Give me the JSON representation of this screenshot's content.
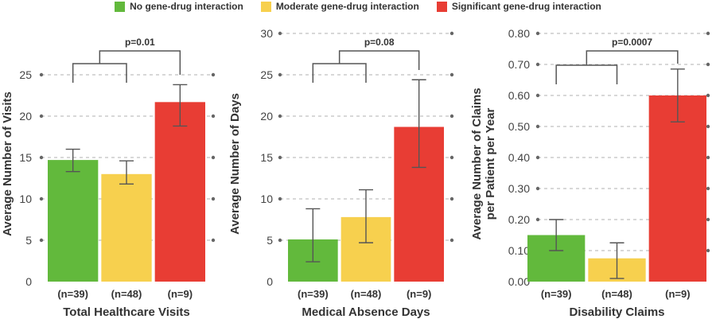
{
  "legend": [
    {
      "label": "No gene-drug interaction",
      "color": "#62b93c"
    },
    {
      "label": "Moderate gene-drug interaction",
      "color": "#f7d04e"
    },
    {
      "label": "Significant gene-drug interaction",
      "color": "#e83d34"
    }
  ],
  "chart_data": [
    {
      "type": "bar",
      "title": "Total Healthcare Visits",
      "ylabel": "Average Number of Visits",
      "categories": [
        "(n=39)",
        "(n=48)",
        "(n=9)"
      ],
      "values": [
        14.7,
        13.0,
        21.7
      ],
      "errors_low": [
        13.3,
        11.8,
        18.8
      ],
      "errors_high": [
        16.0,
        14.6,
        23.8
      ],
      "ylim": [
        0,
        25
      ],
      "yticks": [
        "0",
        "5",
        "10",
        "15",
        "20",
        "25"
      ],
      "pvalue": "p=0.01",
      "grid": true
    },
    {
      "type": "bar",
      "title": "Medical Absence Days",
      "ylabel": "Average Number of Days",
      "categories": [
        "(n=39)",
        "(n=48)",
        "(n=9)"
      ],
      "values": [
        5.1,
        7.8,
        18.7
      ],
      "errors_low": [
        2.4,
        4.7,
        13.8
      ],
      "errors_high": [
        8.8,
        11.1,
        24.4
      ],
      "ylim": [
        0,
        30
      ],
      "yticks": [
        "0",
        "5",
        "10",
        "15",
        "20",
        "25",
        "30"
      ],
      "pvalue": "p=0.08",
      "grid": true
    },
    {
      "type": "bar",
      "title": "Disability Claims",
      "ylabel": "Average Number of Claims per Patient per Year",
      "ylabel_lines": [
        "Average Number of Claims",
        "per Patient per Year"
      ],
      "categories": [
        "(n=39)",
        "(n=48)",
        "(n=9)"
      ],
      "values": [
        0.15,
        0.075,
        0.6
      ],
      "errors_low": [
        0.1,
        0.01,
        0.515
      ],
      "errors_high": [
        0.2,
        0.125,
        0.685
      ],
      "ylim": [
        0,
        0.8
      ],
      "yticks": [
        "0.00",
        "0.10",
        "0.20",
        "0.30",
        "0.40",
        "0.50",
        "0.60",
        "0.70",
        "0.80"
      ],
      "pvalue": "p=0.0007",
      "grid": true
    }
  ]
}
